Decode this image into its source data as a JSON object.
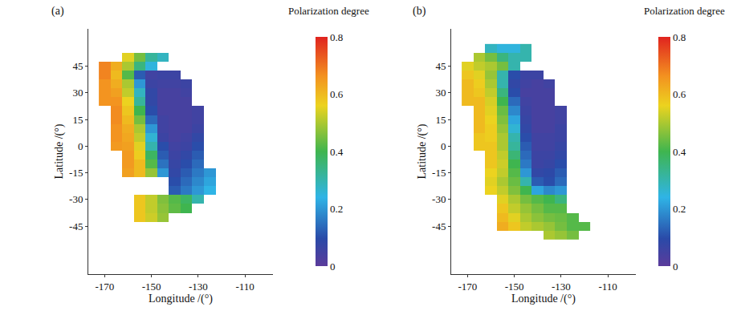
{
  "chart_data": [
    {
      "type": "heatmap",
      "title": "(a)",
      "x_label": "Longitude /(°)",
      "y_label": "Latitude /(°)",
      "xlim": [
        -177,
        -98
      ],
      "ylim": [
        -72,
        66
      ],
      "xticks": [
        -170,
        -150,
        -130,
        -110
      ],
      "yticks": [
        -45,
        -30,
        -15,
        0,
        15,
        30,
        45
      ],
      "grid": false,
      "colorbar": {
        "title": "Polarization degree",
        "range": [
          0,
          0.8
        ],
        "ticks": [
          0,
          0.2,
          0.4,
          0.6,
          0.8
        ]
      },
      "x": [
        -170,
        -165,
        -160,
        -155,
        -150,
        -145,
        -140,
        -135,
        -130,
        -125,
        -120
      ],
      "y": [
        -50,
        -45,
        -40,
        -35,
        -30,
        -25,
        -20,
        -15,
        -10,
        -5,
        0,
        5,
        10,
        15,
        20,
        25,
        30,
        35,
        40,
        45,
        50,
        55
      ],
      "z": [
        [
          null,
          null,
          null,
          null,
          null,
          null,
          null,
          null,
          null,
          null,
          null
        ],
        [
          null,
          null,
          null,
          null,
          null,
          null,
          null,
          null,
          null,
          null,
          null
        ],
        [
          null,
          null,
          null,
          0.58,
          0.53,
          0.48,
          null,
          null,
          null,
          null,
          null
        ],
        [
          null,
          null,
          null,
          0.58,
          0.52,
          0.47,
          0.43,
          0.4,
          null,
          null,
          null
        ],
        [
          null,
          null,
          null,
          0.58,
          0.52,
          0.46,
          0.42,
          0.38,
          0.3,
          null,
          null
        ],
        [
          null,
          null,
          null,
          null,
          null,
          null,
          0.12,
          0.16,
          0.2,
          0.24,
          null
        ],
        [
          null,
          null,
          null,
          null,
          null,
          null,
          0.1,
          0.14,
          0.18,
          0.22,
          null
        ],
        [
          null,
          null,
          0.64,
          0.6,
          0.48,
          0.2,
          0.08,
          0.12,
          0.16,
          0.2,
          null
        ],
        [
          null,
          null,
          0.65,
          0.6,
          0.42,
          0.15,
          0.07,
          0.1,
          0.14,
          null,
          null
        ],
        [
          null,
          null,
          0.65,
          0.57,
          0.38,
          0.12,
          0.06,
          0.08,
          0.12,
          null,
          null
        ],
        [
          null,
          0.65,
          0.64,
          0.55,
          0.3,
          0.1,
          0.05,
          0.06,
          0.1,
          null,
          null
        ],
        [
          null,
          0.66,
          0.63,
          0.52,
          0.26,
          0.06,
          0.04,
          0.05,
          0.08,
          null,
          null
        ],
        [
          null,
          0.66,
          0.62,
          0.5,
          0.2,
          0.05,
          0.04,
          0.04,
          0.06,
          null,
          null
        ],
        [
          null,
          0.67,
          0.6,
          0.45,
          0.14,
          0.05,
          0.04,
          0.04,
          0.05,
          null,
          null
        ],
        [
          null,
          0.67,
          0.58,
          0.4,
          0.1,
          0.04,
          0.04,
          0.04,
          0.05,
          null,
          null
        ],
        [
          0.66,
          0.66,
          0.56,
          0.32,
          0.08,
          0.04,
          0.04,
          0.04,
          null,
          null,
          null
        ],
        [
          0.66,
          0.64,
          0.52,
          0.28,
          0.08,
          0.04,
          0.04,
          0.05,
          null,
          null,
          null
        ],
        [
          0.66,
          0.62,
          0.5,
          0.2,
          0.06,
          0.05,
          0.05,
          0.06,
          null,
          null,
          null
        ],
        [
          0.68,
          0.6,
          0.42,
          0.12,
          0.05,
          0.06,
          0.06,
          null,
          null,
          null,
          null
        ],
        [
          0.68,
          0.62,
          0.5,
          0.35,
          0.25,
          null,
          null,
          null,
          null,
          null,
          null
        ],
        [
          null,
          null,
          0.55,
          0.45,
          0.32,
          0.28,
          null,
          null,
          null,
          null,
          null
        ],
        [
          null,
          null,
          null,
          null,
          null,
          null,
          null,
          null,
          null,
          null,
          null
        ]
      ]
    },
    {
      "type": "heatmap",
      "title": "(b)",
      "x_label": "Longitude /(°)",
      "y_label": "Latitude /(°)",
      "xlim": [
        -177,
        -98
      ],
      "ylim": [
        -72,
        66
      ],
      "xticks": [
        -170,
        -150,
        -130,
        -110
      ],
      "yticks": [
        -45,
        -30,
        -15,
        0,
        15,
        30,
        45
      ],
      "grid": false,
      "colorbar": {
        "title": "Polarization degree",
        "range": [
          0,
          0.8
        ],
        "ticks": [
          0,
          0.2,
          0.4,
          0.6,
          0.8
        ]
      },
      "x": [
        -170,
        -165,
        -160,
        -155,
        -150,
        -145,
        -140,
        -135,
        -130,
        -125,
        -120
      ],
      "y": [
        -50,
        -45,
        -40,
        -35,
        -30,
        -25,
        -20,
        -15,
        -10,
        -5,
        0,
        5,
        10,
        15,
        20,
        25,
        30,
        35,
        40,
        45,
        50,
        55
      ],
      "z": [
        [
          null,
          null,
          null,
          null,
          null,
          null,
          null,
          0.5,
          0.48,
          0.45,
          null
        ],
        [
          null,
          null,
          null,
          0.62,
          0.58,
          0.52,
          0.5,
          0.48,
          0.45,
          0.42,
          0.42
        ],
        [
          null,
          null,
          null,
          0.6,
          0.55,
          0.5,
          0.47,
          0.45,
          0.44,
          0.42,
          null
        ],
        [
          null,
          null,
          null,
          0.58,
          0.52,
          0.48,
          0.45,
          0.42,
          0.42,
          null,
          null
        ],
        [
          null,
          null,
          null,
          0.55,
          0.5,
          0.45,
          0.42,
          0.4,
          0.35,
          null,
          null
        ],
        [
          null,
          null,
          0.56,
          0.52,
          0.46,
          0.4,
          0.22,
          0.18,
          0.2,
          null,
          null
        ],
        [
          null,
          null,
          0.55,
          0.5,
          0.44,
          0.3,
          0.12,
          0.1,
          0.14,
          null,
          null
        ],
        [
          null,
          null,
          0.56,
          0.52,
          0.42,
          0.2,
          0.08,
          0.09,
          0.12,
          null,
          null
        ],
        [
          null,
          null,
          0.58,
          0.53,
          0.4,
          0.16,
          0.06,
          0.07,
          0.1,
          null,
          null
        ],
        [
          null,
          null,
          0.58,
          0.52,
          0.36,
          0.14,
          0.06,
          0.06,
          0.08,
          null,
          null
        ],
        [
          null,
          0.58,
          0.58,
          0.5,
          0.32,
          0.12,
          0.05,
          0.05,
          0.07,
          null,
          null
        ],
        [
          null,
          0.58,
          0.57,
          0.5,
          0.3,
          0.1,
          0.05,
          0.05,
          0.06,
          null,
          null
        ],
        [
          null,
          0.6,
          0.57,
          0.48,
          0.26,
          0.08,
          0.04,
          0.04,
          0.06,
          null,
          null
        ],
        [
          null,
          0.6,
          0.56,
          0.46,
          0.22,
          0.07,
          0.04,
          0.04,
          0.05,
          null,
          null
        ],
        [
          null,
          0.6,
          0.55,
          0.44,
          0.18,
          0.06,
          0.04,
          0.04,
          0.05,
          null,
          null
        ],
        [
          0.6,
          0.6,
          0.54,
          0.4,
          0.14,
          0.05,
          0.04,
          0.04,
          null,
          null,
          null
        ],
        [
          0.6,
          0.58,
          0.52,
          0.35,
          0.1,
          0.04,
          0.04,
          0.04,
          null,
          null,
          null
        ],
        [
          0.6,
          0.57,
          0.5,
          0.3,
          0.08,
          0.05,
          0.04,
          0.05,
          null,
          null,
          null
        ],
        [
          0.58,
          0.55,
          0.48,
          0.3,
          0.1,
          0.06,
          0.06,
          null,
          null,
          null,
          null
        ],
        [
          0.55,
          0.52,
          0.5,
          0.45,
          0.3,
          null,
          null,
          null,
          null,
          null,
          null
        ],
        [
          null,
          0.5,
          0.45,
          0.35,
          0.3,
          0.3,
          null,
          null,
          null,
          null,
          null
        ],
        [
          null,
          null,
          0.28,
          0.25,
          0.25,
          0.3,
          null,
          null,
          null,
          null,
          null
        ]
      ]
    }
  ]
}
